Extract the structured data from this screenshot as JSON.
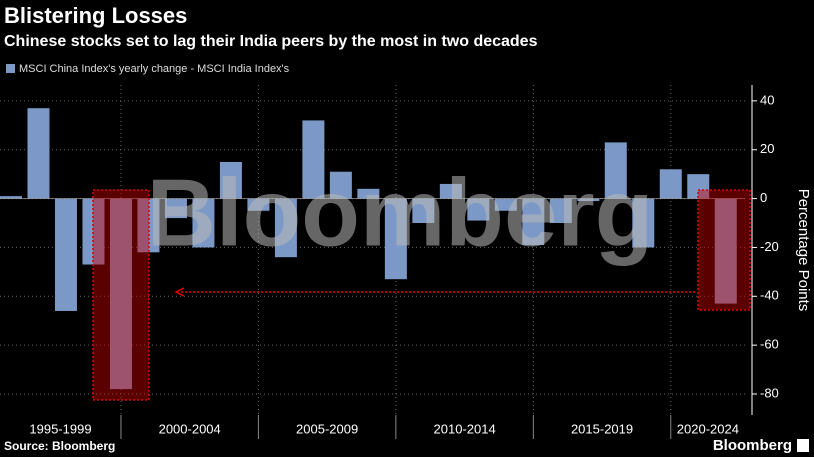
{
  "chart_data": {
    "type": "bar",
    "title": "Blistering Losses",
    "subtitle": "Chinese stocks set to lag their India peers by the most in two decades",
    "series": [
      {
        "name": "MSCI China Index's yearly change - MSCI India Index's",
        "color": "#7b98c6",
        "values": [
          1,
          37,
          -46,
          -27,
          -78,
          -22,
          -8,
          -20,
          15,
          -5,
          -24,
          32,
          11,
          4,
          -33,
          -10,
          6,
          -9,
          -5,
          -19,
          -10,
          -1,
          23,
          -20,
          12,
          10,
          -43
        ]
      }
    ],
    "x": [
      1996,
      1997,
      1998,
      1999,
      2000,
      2001,
      2002,
      2003,
      2004,
      2005,
      2006,
      2007,
      2008,
      2009,
      2010,
      2011,
      2012,
      2013,
      2014,
      2015,
      2016,
      2017,
      2018,
      2019,
      2020,
      2021,
      2022
    ],
    "xlim": [
      1995.6,
      2022.7
    ],
    "xticks": [
      2000,
      2005,
      2010,
      2015,
      2020
    ],
    "categories": [
      "1995-1999",
      "2000-2004",
      "2005-2009",
      "2010-2014",
      "2015-2019",
      "2020-2024"
    ],
    "ylim": [
      -88.6,
      46.5
    ],
    "yticks": [
      40,
      20,
      0,
      -20,
      -40,
      -60,
      -80
    ],
    "y_axis_label": "Percentage Points",
    "grid": true,
    "watermark": "Bloomberg",
    "source": "Source: Bloomberg",
    "logo": "Bloomberg"
  }
}
